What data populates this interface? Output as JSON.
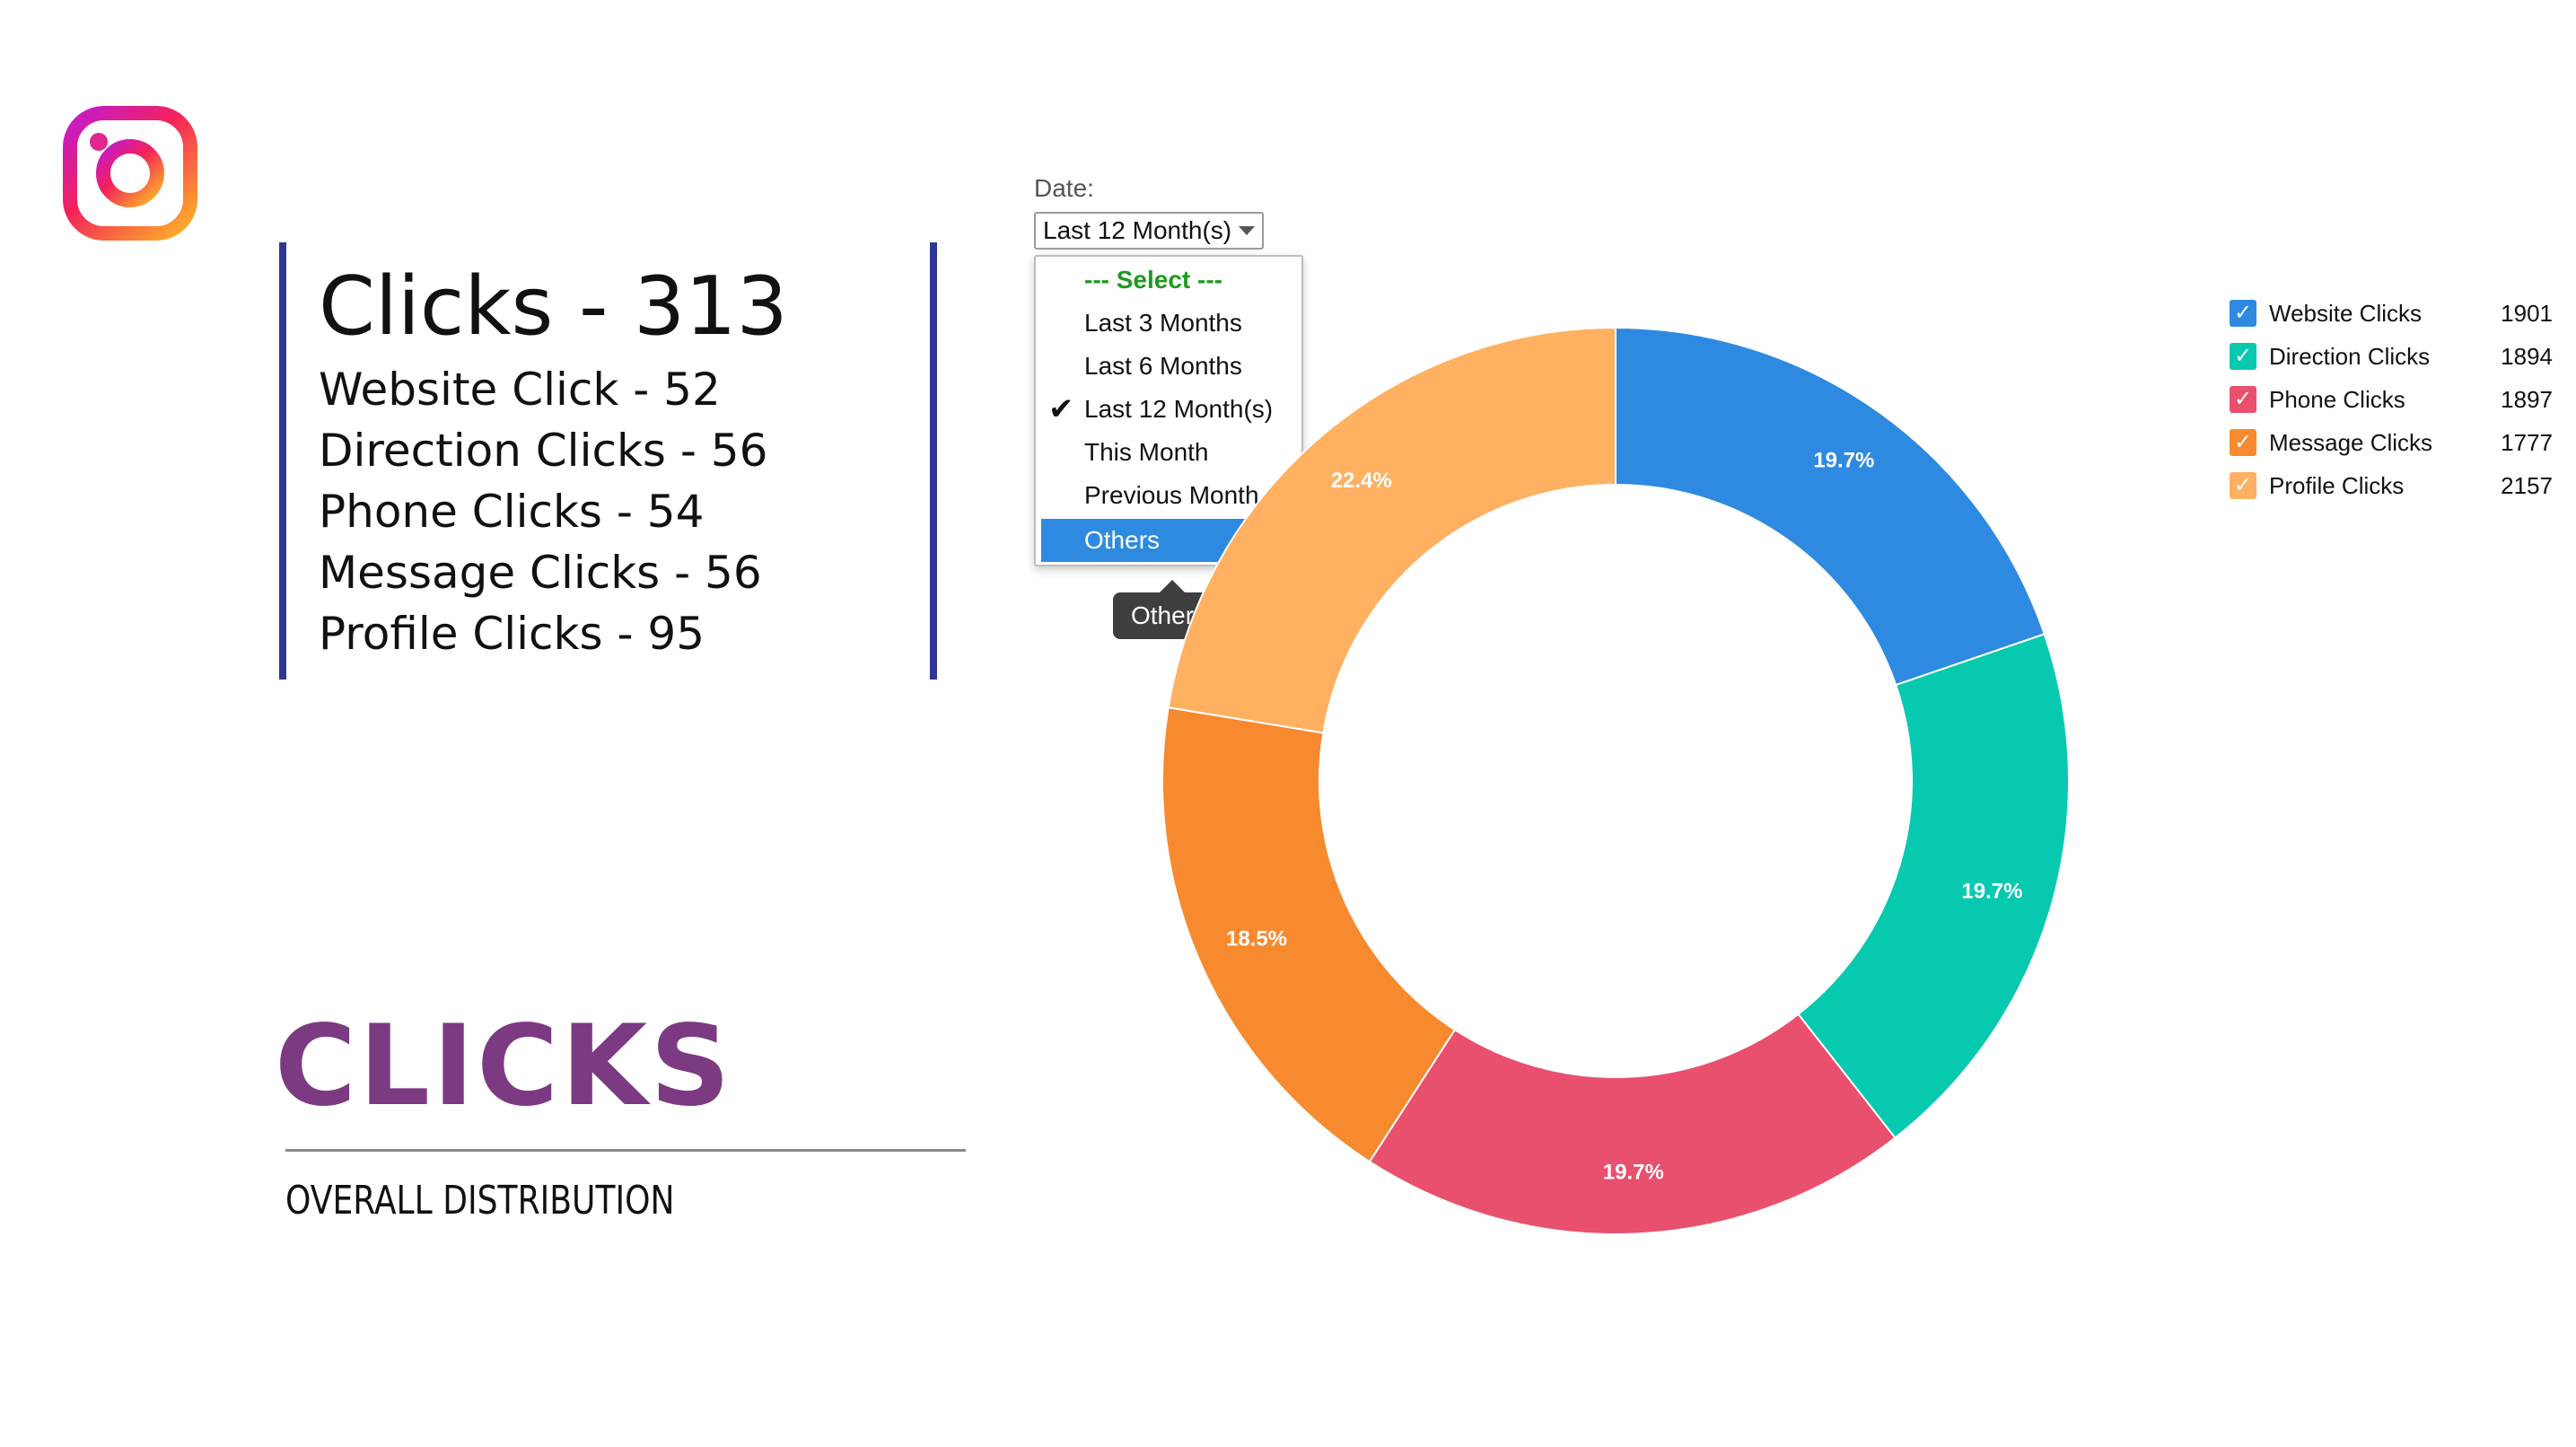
{
  "summary": {
    "title": "Clicks - 313",
    "lines": [
      "Website Click - 52",
      "Direction Clicks - 56",
      "Phone Clicks - 54",
      "Message Clicks - 56",
      "Profile Clicks - 95"
    ],
    "border_color": "#2e3892"
  },
  "heading": {
    "title": "CLICKS",
    "subtitle": "OVERALL DISTRIBUTION",
    "title_color": "#7c3a82"
  },
  "date_filter": {
    "label": "Date:",
    "selected": "Last 12 Month(s)",
    "options": [
      "--- Select ---",
      "Last 3 Months",
      "Last 6 Months",
      "Last 12 Month(s)",
      "This Month",
      "Previous Month",
      "Others"
    ],
    "checked_option": "Last 12 Month(s)",
    "highlighted_option": "Others",
    "check_glyph": "✔",
    "tooltip": "Others"
  },
  "legend": [
    {
      "label": "Website Clicks",
      "value": "1901",
      "color": "#2e8ae0",
      "checked": true
    },
    {
      "label": "Direction Clicks",
      "value": "1894",
      "color": "#06c9b0",
      "checked": true
    },
    {
      "label": "Phone Clicks",
      "value": "1897",
      "color": "#e8506e",
      "checked": true
    },
    {
      "label": "Message Clicks",
      "value": "1777",
      "color": "#f78a2e",
      "checked": true
    },
    {
      "label": "Profile Clicks",
      "value": "2157",
      "color": "#ffb060",
      "checked": true
    }
  ],
  "chart_data": {
    "type": "pie",
    "donut": true,
    "categories": [
      "Website Clicks",
      "Direction Clicks",
      "Phone Clicks",
      "Message Clicks",
      "Profile Clicks"
    ],
    "values": [
      1901,
      1894,
      1897,
      1777,
      2157
    ],
    "labels": [
      "19.7%",
      "19.7%",
      "19.7%",
      "18.5%",
      "22.4%"
    ],
    "colors": [
      "#2e8ae0",
      "#06c9b0",
      "#e8506e",
      "#f78a2e",
      "#ffb060"
    ]
  },
  "icons": {
    "logo": "instagram-logo",
    "legend_check": "checkmark-icon",
    "dropdown": "caret-down-icon"
  }
}
